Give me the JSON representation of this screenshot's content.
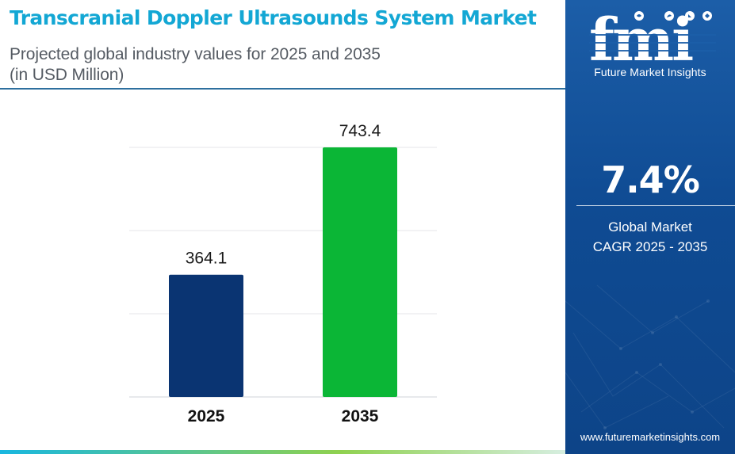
{
  "chart_data": {
    "type": "bar",
    "title": "Transcranial Doppler Ultrasounds System Market",
    "subtitle_lines": [
      "Projected global industry values for 2025 and 2035",
      "(in USD Million)"
    ],
    "categories": [
      "2025",
      "2035"
    ],
    "values": [
      364.1,
      743.4
    ],
    "value_labels": [
      "364.1",
      "743.4"
    ],
    "bar_colors": [
      "#0a3472",
      "#0bb636"
    ],
    "ylim": [
      0,
      743.4
    ],
    "xlabel": "",
    "ylabel": "",
    "grid": true,
    "legend": "none"
  },
  "sidebar": {
    "logo_text": "fmi",
    "brand_name": "Future Market Insights",
    "cagr_value": "7.4%",
    "cagr_label_line1": "Global Market",
    "cagr_label_line2": "CAGR 2025 - 2035",
    "website": "www.futuremarketinsights.com"
  },
  "colors": {
    "title": "#13a7d4",
    "panel": "#0f4b93",
    "accent_green": "#0bb636",
    "accent_navy": "#0a3472"
  }
}
